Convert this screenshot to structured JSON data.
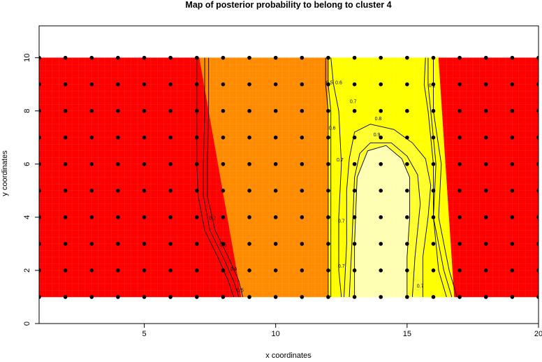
{
  "chart_data": {
    "type": "heatmap",
    "title": "Map of posterior probability to belong to cluster  4",
    "xlabel": "x coordinates",
    "ylabel": "y coordinates",
    "xlim": [
      1,
      20
    ],
    "ylim": [
      0,
      11.2
    ],
    "x_ticks": [
      5,
      10,
      15,
      20
    ],
    "y_ticks": [
      0,
      2,
      4,
      6,
      8,
      10
    ],
    "grid_x": [
      1,
      20
    ],
    "grid_y": [
      1,
      10
    ],
    "points": {
      "x": [
        1,
        2,
        3,
        4,
        5,
        6,
        7,
        8,
        9,
        10,
        11,
        12,
        13,
        14,
        15,
        16,
        17,
        18,
        19,
        20
      ],
      "y": [
        1,
        2,
        3,
        4,
        5,
        6,
        7,
        8,
        9,
        10
      ]
    },
    "colors": {
      "red": "#ff0000",
      "orange": "#ff8c00",
      "yellow": "#ffff00",
      "cream": "#ffffd0",
      "pale_yellow": "#ffff80"
    },
    "regions": [
      {
        "fill": "red",
        "x_left": [
          1,
          1
        ],
        "x_right": [
          7.1,
          8.7
        ],
        "level": "low"
      },
      {
        "fill": "orange",
        "x_left": [
          7.1,
          8.7
        ],
        "x_right": [
          12,
          12
        ],
        "level": "mid"
      },
      {
        "fill": "yellow",
        "x_left": [
          12,
          12
        ],
        "x_right": [
          16.2,
          16.8
        ],
        "level": "high"
      },
      {
        "fill": "red",
        "x_left": [
          16.2,
          16.8
        ],
        "x_right": [
          20,
          20
        ],
        "level": "low"
      }
    ],
    "contours": [
      {
        "level": "0.5",
        "points": [
          [
            7.0,
            10
          ],
          [
            7.0,
            8
          ],
          [
            7.0,
            6
          ],
          [
            7.05,
            4.8
          ],
          [
            7.3,
            3.5
          ],
          [
            7.8,
            2.5
          ],
          [
            8.2,
            1.6
          ],
          [
            8.4,
            1
          ]
        ]
      },
      {
        "level": "0.6",
        "points": [
          [
            7.3,
            10
          ],
          [
            7.3,
            8
          ],
          [
            7.25,
            6
          ],
          [
            7.25,
            4.8
          ],
          [
            7.5,
            3.5
          ],
          [
            8.0,
            2.5
          ],
          [
            8.4,
            1.6
          ],
          [
            8.6,
            1
          ]
        ]
      },
      {
        "level": "0.7",
        "points": [
          [
            7.45,
            10
          ],
          [
            7.45,
            8
          ],
          [
            7.4,
            6
          ],
          [
            7.4,
            4.8
          ],
          [
            7.7,
            3.5
          ],
          [
            8.2,
            2.5
          ],
          [
            8.6,
            1.6
          ],
          [
            8.75,
            1
          ]
        ]
      },
      {
        "level": "0.5",
        "points": [
          [
            11.9,
            10
          ],
          [
            11.9,
            9
          ],
          [
            12.0,
            8
          ],
          [
            12.0,
            6
          ],
          [
            12.0,
            4
          ],
          [
            12.0,
            2
          ],
          [
            12.0,
            1
          ]
        ]
      },
      {
        "level": "0.6",
        "points": [
          [
            12.0,
            10
          ],
          [
            12.0,
            9
          ],
          [
            12.1,
            8
          ],
          [
            12.1,
            6
          ],
          [
            12.1,
            4
          ],
          [
            12.1,
            2
          ],
          [
            12.1,
            1
          ]
        ]
      },
      {
        "level": "0.7",
        "points": [
          [
            12.1,
            10
          ],
          [
            12.2,
            9
          ],
          [
            12.4,
            8
          ],
          [
            12.5,
            6
          ],
          [
            12.4,
            4
          ],
          [
            12.4,
            2
          ],
          [
            12.5,
            1
          ]
        ]
      },
      {
        "level": "0.8",
        "points": [
          [
            12.6,
            1
          ],
          [
            12.7,
            3
          ],
          [
            12.7,
            5
          ],
          [
            12.8,
            6.2
          ],
          [
            13.0,
            7.2
          ],
          [
            13.6,
            7.5
          ],
          [
            14.5,
            7.3
          ],
          [
            15.2,
            6.8
          ],
          [
            15.7,
            6.2
          ],
          [
            15.9,
            5.2
          ],
          [
            15.8,
            4
          ],
          [
            15.6,
            2.5
          ],
          [
            15.6,
            1
          ]
        ]
      },
      {
        "level": "0.9",
        "points": [
          [
            12.8,
            1
          ],
          [
            12.9,
            3
          ],
          [
            13.0,
            5.5
          ],
          [
            13.2,
            6.4
          ],
          [
            13.6,
            6.8
          ],
          [
            14.4,
            6.8
          ],
          [
            15.0,
            6.3
          ],
          [
            15.4,
            5.6
          ],
          [
            15.5,
            4.5
          ],
          [
            15.3,
            2.5
          ],
          [
            15.2,
            1
          ]
        ]
      },
      {
        "level": "",
        "points": [
          [
            13.0,
            1
          ],
          [
            13.0,
            3
          ],
          [
            13.1,
            5.5
          ],
          [
            13.5,
            6.5
          ],
          [
            14.2,
            6.7
          ],
          [
            14.8,
            6.2
          ],
          [
            15.1,
            5.5
          ],
          [
            15.1,
            4
          ],
          [
            15.0,
            2.5
          ],
          [
            15.0,
            1
          ]
        ]
      },
      {
        "level": "0.5",
        "points": [
          [
            16.0,
            10
          ],
          [
            16.0,
            9
          ],
          [
            16.0,
            8
          ],
          [
            16.3,
            6
          ],
          [
            16.2,
            4
          ],
          [
            16.6,
            2
          ],
          [
            16.9,
            1
          ]
        ]
      },
      {
        "level": "0.6",
        "points": [
          [
            15.8,
            10
          ],
          [
            15.8,
            9
          ],
          [
            15.9,
            8
          ],
          [
            16.1,
            6
          ],
          [
            16.0,
            4
          ],
          [
            16.4,
            2
          ],
          [
            16.7,
            1
          ]
        ]
      },
      {
        "level": "0.7",
        "points": [
          [
            15.7,
            10
          ],
          [
            15.65,
            9
          ],
          [
            15.8,
            8
          ],
          [
            16.0,
            6
          ],
          [
            16.0,
            4
          ],
          [
            16.2,
            2
          ],
          [
            16.5,
            1
          ]
        ]
      }
    ],
    "contour_labels": [
      {
        "text": "0.5",
        "x": 12.05,
        "y": 9.0
      },
      {
        "text": "0.6",
        "x": 12.4,
        "y": 9.0
      },
      {
        "text": "0.6",
        "x": 12.15,
        "y": 7.3
      },
      {
        "text": "0.7",
        "x": 12.95,
        "y": 8.3
      },
      {
        "text": "0.7",
        "x": 12.45,
        "y": 6.1
      },
      {
        "text": "0.7",
        "x": 12.5,
        "y": 3.8
      },
      {
        "text": "0.7",
        "x": 12.5,
        "y": 2.1
      },
      {
        "text": "0.8",
        "x": 13.9,
        "y": 7.65
      },
      {
        "text": "0.9",
        "x": 13.85,
        "y": 7.05
      },
      {
        "text": "0.7",
        "x": 15.5,
        "y": 1.35
      },
      {
        "text": "0.1",
        "x": 15.95,
        "y": 8.9
      },
      {
        "text": "0.7",
        "x": 7.6,
        "y": 3.9
      },
      {
        "text": "0.6",
        "x": 8.0,
        "y": 2.9
      },
      {
        "text": "0.6",
        "x": 8.4,
        "y": 2.0
      },
      {
        "text": "0.5",
        "x": 8.65,
        "y": 1.2
      }
    ],
    "grid": false,
    "legend": "none"
  }
}
